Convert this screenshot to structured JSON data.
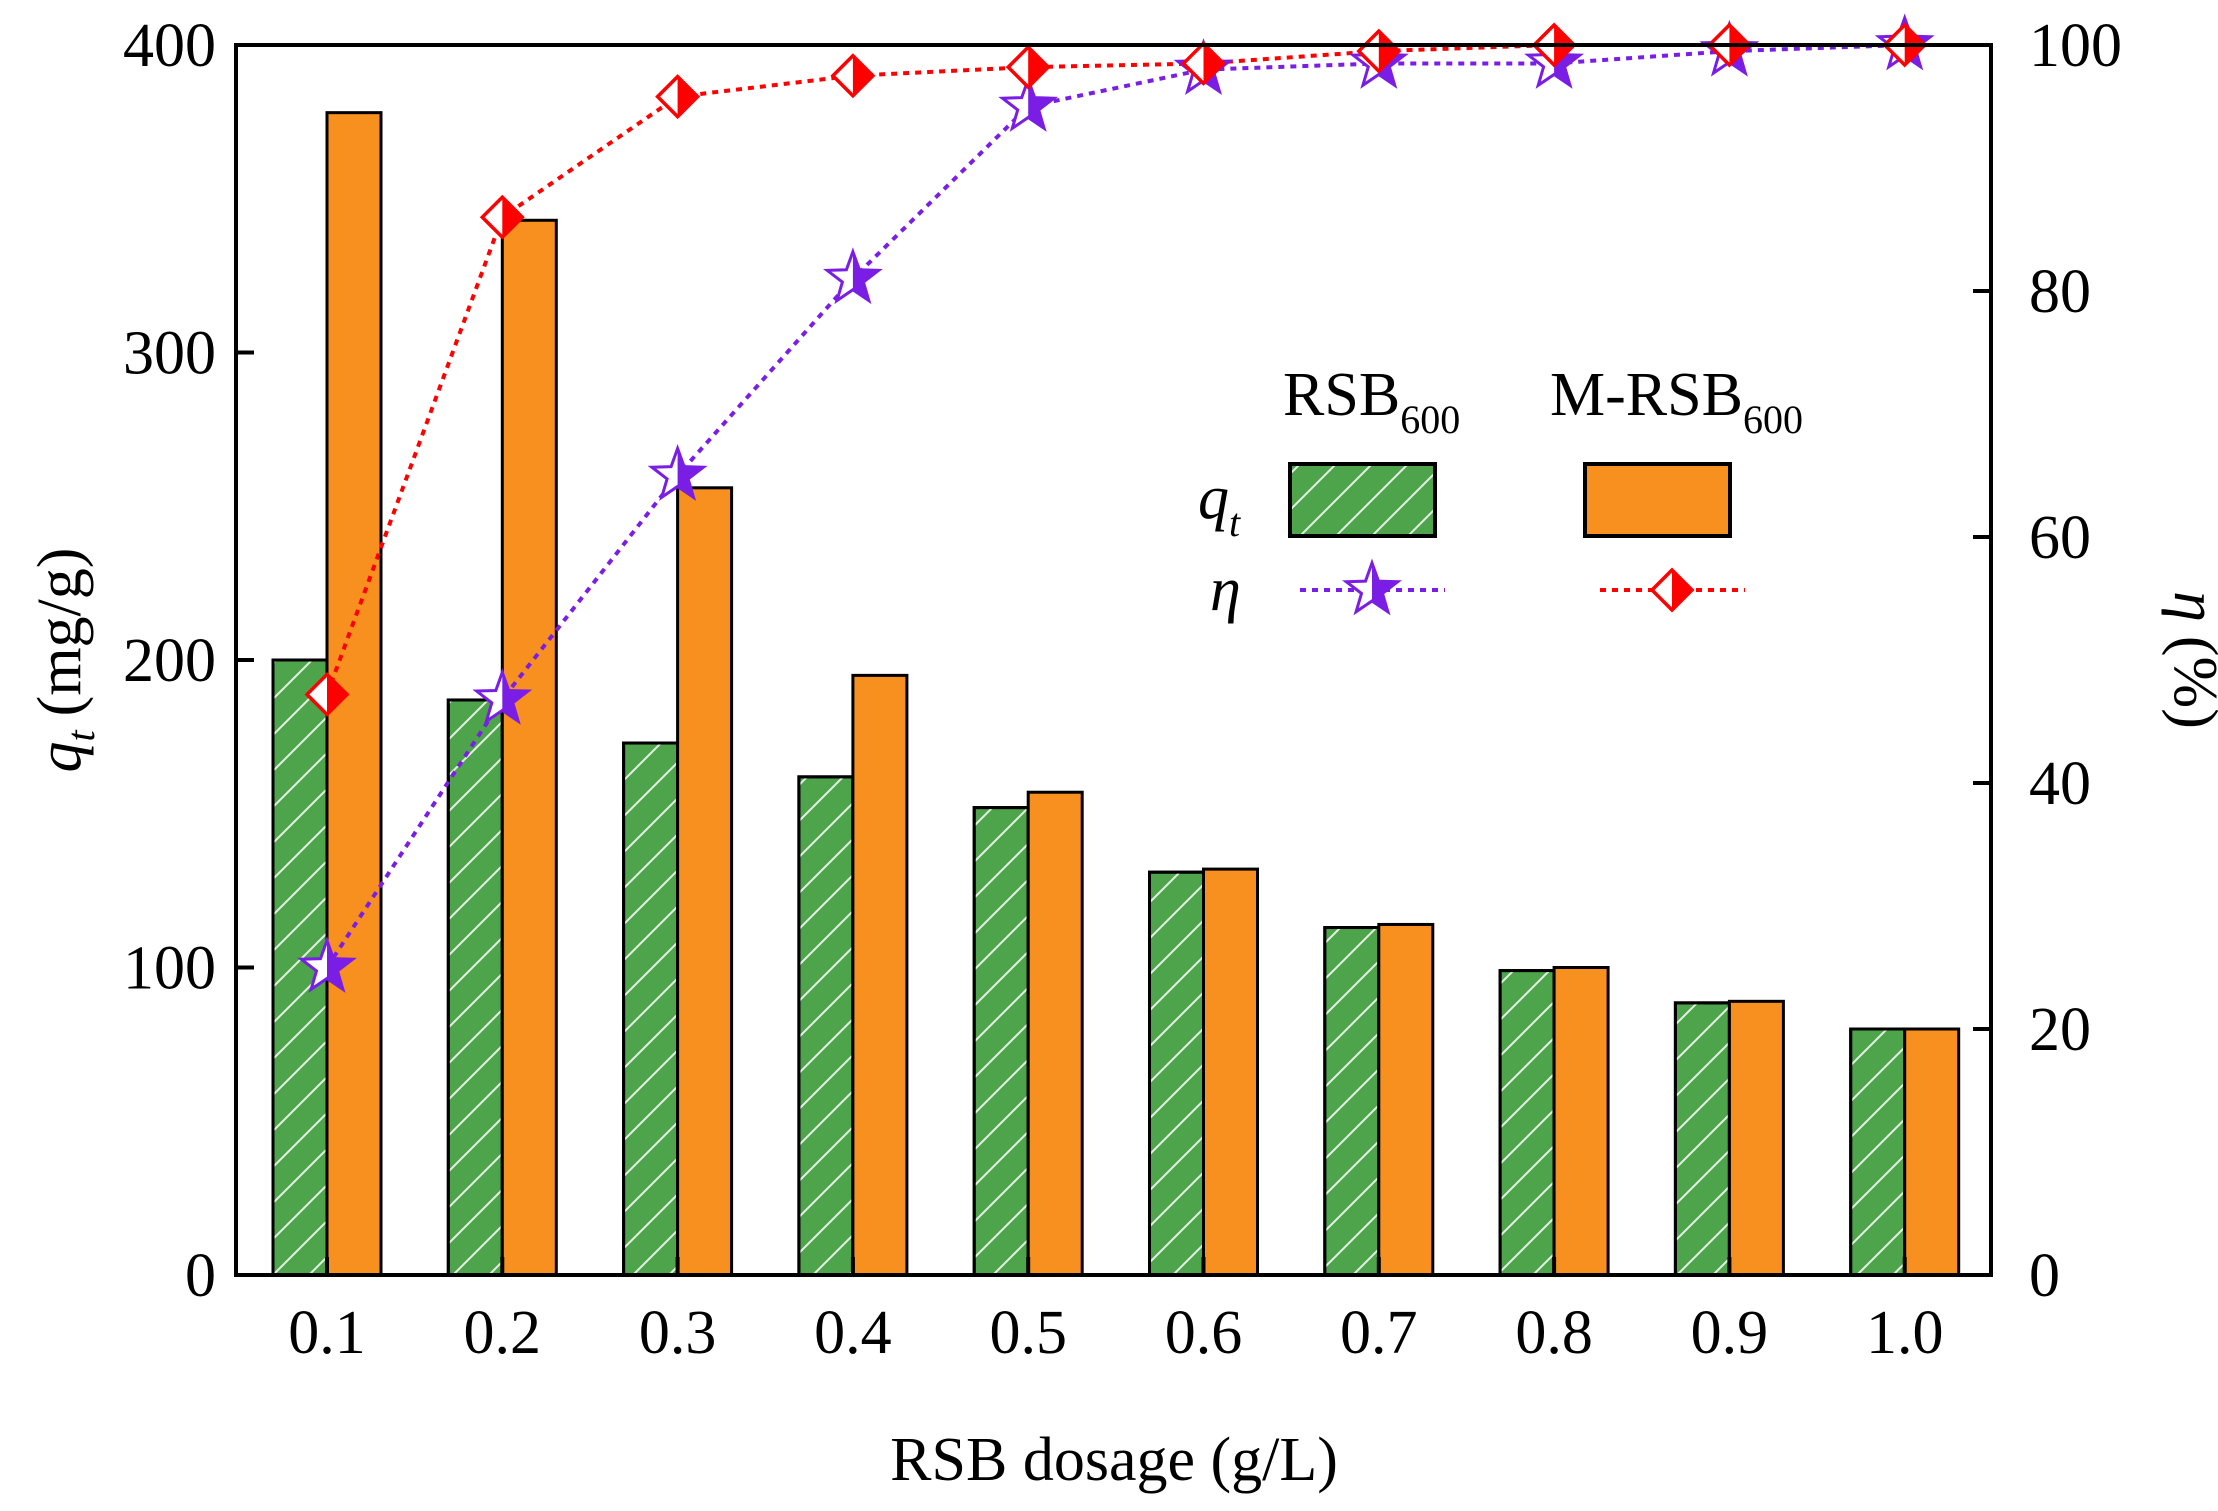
{
  "chart_data": {
    "type": "bar",
    "title": "",
    "xlabel": "RSB dosage (g/L)",
    "ylabel": {
      "symbol": "q",
      "subscript": "t",
      "unit": "(mg/g)"
    },
    "y2label": {
      "symbol": "η",
      "unit": "(%)"
    },
    "categories": [
      "0.1",
      "0.2",
      "0.3",
      "0.4",
      "0.5",
      "0.6",
      "0.7",
      "0.8",
      "0.9",
      "1.0"
    ],
    "ylim": [
      0,
      400
    ],
    "y2lim": [
      0,
      100
    ],
    "yticks": [
      0,
      100,
      200,
      300,
      400
    ],
    "y2ticks": [
      0,
      20,
      40,
      60,
      80,
      100
    ],
    "bar_series": [
      {
        "name": "RSB600",
        "label_main": "RSB",
        "label_sub": "600",
        "values": [
          200,
          187,
          173,
          162,
          152,
          131,
          113,
          99,
          88.5,
          80
        ],
        "color": "#4ea44b",
        "hatch": true
      },
      {
        "name": "M-RSB600",
        "label_main": "M-RSB",
        "label_sub": "600",
        "values": [
          378,
          343,
          256,
          195,
          157,
          132,
          114,
          100,
          89,
          80
        ],
        "color": "#f8901f",
        "hatch": false
      }
    ],
    "line_series": [
      {
        "name": "η RSB600",
        "values": [
          25,
          46.8,
          65,
          81,
          95,
          98,
          98.5,
          98.5,
          99.5,
          100
        ],
        "color": "#7a1ee6",
        "marker": "star"
      },
      {
        "name": "η M-RSB600",
        "values": [
          47.2,
          86,
          95.8,
          97.5,
          98.2,
          98.5,
          99.5,
          100,
          100,
          100
        ],
        "color": "#ff0000",
        "marker": "half-diamond"
      }
    ],
    "legend": {
      "position": "upper-right",
      "row_labels": [
        {
          "symbol": "q",
          "subscript": "t"
        },
        {
          "symbol": "η",
          "subscript": ""
        }
      ]
    }
  }
}
